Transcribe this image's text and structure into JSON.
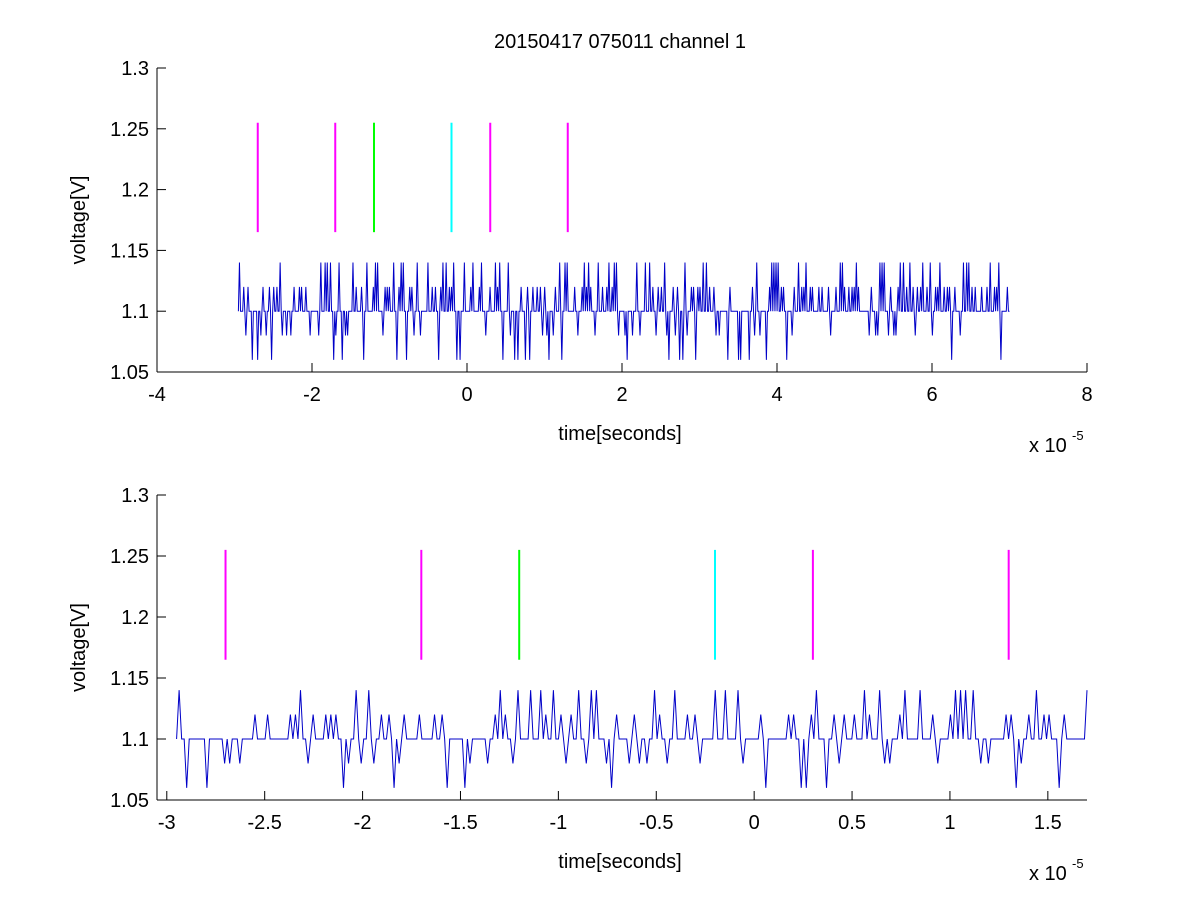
{
  "figure": {
    "title": "20150417 075011 channel 1"
  },
  "chart_data": [
    {
      "type": "line",
      "xlabel": "time[seconds]",
      "ylabel": "voltage[V]",
      "x_exponent_label": "x 10",
      "x_exponent": "-5",
      "xlim": [
        -4,
        8
      ],
      "ylim": [
        1.05,
        1.3
      ],
      "xticks": [
        -4,
        -2,
        0,
        2,
        4,
        6,
        8
      ],
      "xtick_labels": [
        "-4",
        "-2",
        "0",
        "2",
        "4",
        "6",
        "8"
      ],
      "yticks": [
        1.05,
        1.1,
        1.15,
        1.2,
        1.25,
        1.3
      ],
      "ytick_labels": [
        "1.05",
        "1.1",
        "1.15",
        "1.2",
        "1.25",
        "1.3"
      ],
      "grid": false,
      "series": [
        {
          "color": "#0000c8",
          "x_range": [
            -2.95,
            7.0
          ],
          "levels": [
            1.06,
            1.08,
            1.1,
            1.12,
            1.14
          ],
          "baseline": 1.1,
          "description": "noisy stepwise voltage trace"
        }
      ],
      "markers": [
        {
          "x": -2.7,
          "y_range": [
            1.165,
            1.255
          ],
          "color": "#ff00ff"
        },
        {
          "x": -1.7,
          "y_range": [
            1.165,
            1.255
          ],
          "color": "#ff00ff"
        },
        {
          "x": -1.2,
          "y_range": [
            1.165,
            1.255
          ],
          "color": "#00ff00"
        },
        {
          "x": -0.2,
          "y_range": [
            1.165,
            1.255
          ],
          "color": "#00ffff"
        },
        {
          "x": 0.3,
          "y_range": [
            1.165,
            1.255
          ],
          "color": "#ff00ff"
        },
        {
          "x": 1.3,
          "y_range": [
            1.165,
            1.255
          ],
          "color": "#ff00ff"
        }
      ]
    },
    {
      "type": "line",
      "xlabel": "time[seconds]",
      "ylabel": "voltage[V]",
      "x_exponent_label": "x 10",
      "x_exponent": "-5",
      "xlim": [
        -3.05,
        1.7
      ],
      "ylim": [
        1.05,
        1.3
      ],
      "xticks": [
        -3,
        -2.5,
        -2,
        -1.5,
        -1,
        -0.5,
        0,
        0.5,
        1,
        1.5
      ],
      "xtick_labels": [
        "-3",
        "-2.5",
        "-2",
        "-1.5",
        "-1",
        "-0.5",
        "0",
        "0.5",
        "1",
        "1.5"
      ],
      "yticks": [
        1.05,
        1.1,
        1.15,
        1.2,
        1.25,
        1.3
      ],
      "ytick_labels": [
        "1.05",
        "1.1",
        "1.15",
        "1.2",
        "1.25",
        "1.3"
      ],
      "grid": false,
      "series": [
        {
          "color": "#0000c8",
          "x_range": [
            -2.95,
            1.7
          ],
          "levels": [
            1.06,
            1.08,
            1.1,
            1.12,
            1.14
          ],
          "baseline": 1.1,
          "description": "noisy stepwise voltage trace"
        }
      ],
      "markers": [
        {
          "x": -2.7,
          "y_range": [
            1.165,
            1.255
          ],
          "color": "#ff00ff"
        },
        {
          "x": -1.7,
          "y_range": [
            1.165,
            1.255
          ],
          "color": "#ff00ff"
        },
        {
          "x": -1.2,
          "y_range": [
            1.165,
            1.255
          ],
          "color": "#00ff00"
        },
        {
          "x": -0.2,
          "y_range": [
            1.165,
            1.255
          ],
          "color": "#00ffff"
        },
        {
          "x": 0.3,
          "y_range": [
            1.165,
            1.255
          ],
          "color": "#ff00ff"
        },
        {
          "x": 1.3,
          "y_range": [
            1.165,
            1.255
          ],
          "color": "#ff00ff"
        }
      ]
    }
  ]
}
